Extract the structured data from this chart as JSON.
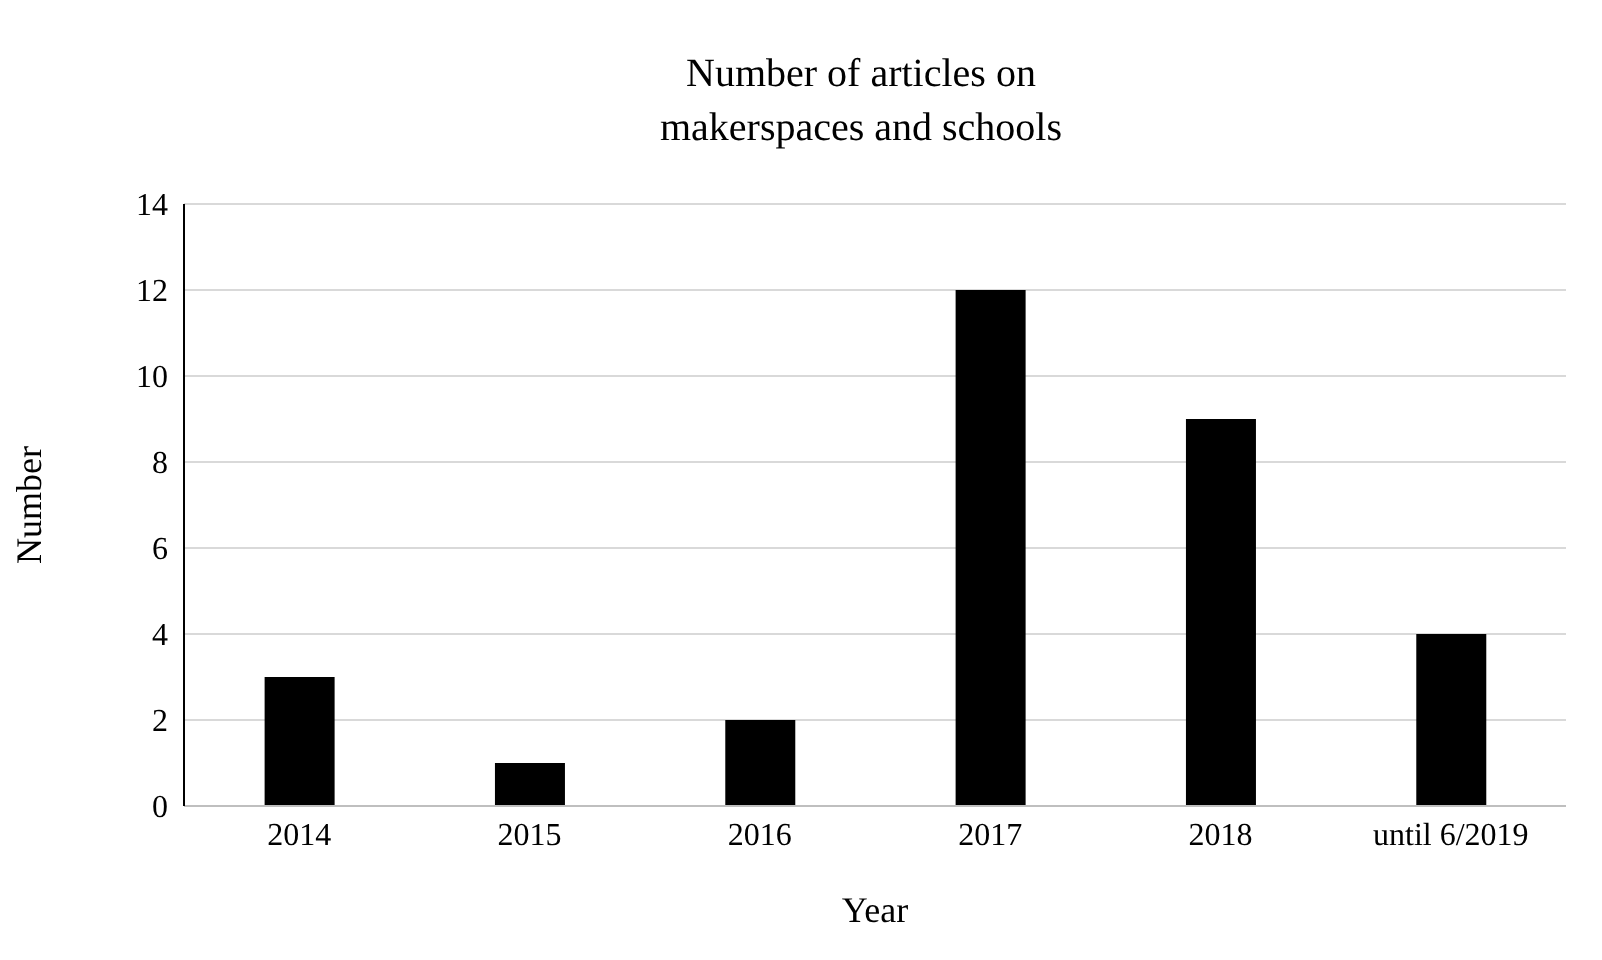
{
  "chart_data": {
    "type": "bar",
    "title": "Number of articles on makerspaces and schools",
    "xlabel": "Year",
    "ylabel": "Number",
    "categories": [
      "2014",
      "2015",
      "2016",
      "2017",
      "2018",
      "until 6/2019"
    ],
    "values": [
      3,
      1,
      2,
      12,
      9,
      4
    ],
    "color": "#000000",
    "ylim": [
      0,
      14
    ],
    "yticks": [
      0,
      2,
      4,
      6,
      8,
      10,
      12,
      14
    ],
    "grid": "y"
  }
}
